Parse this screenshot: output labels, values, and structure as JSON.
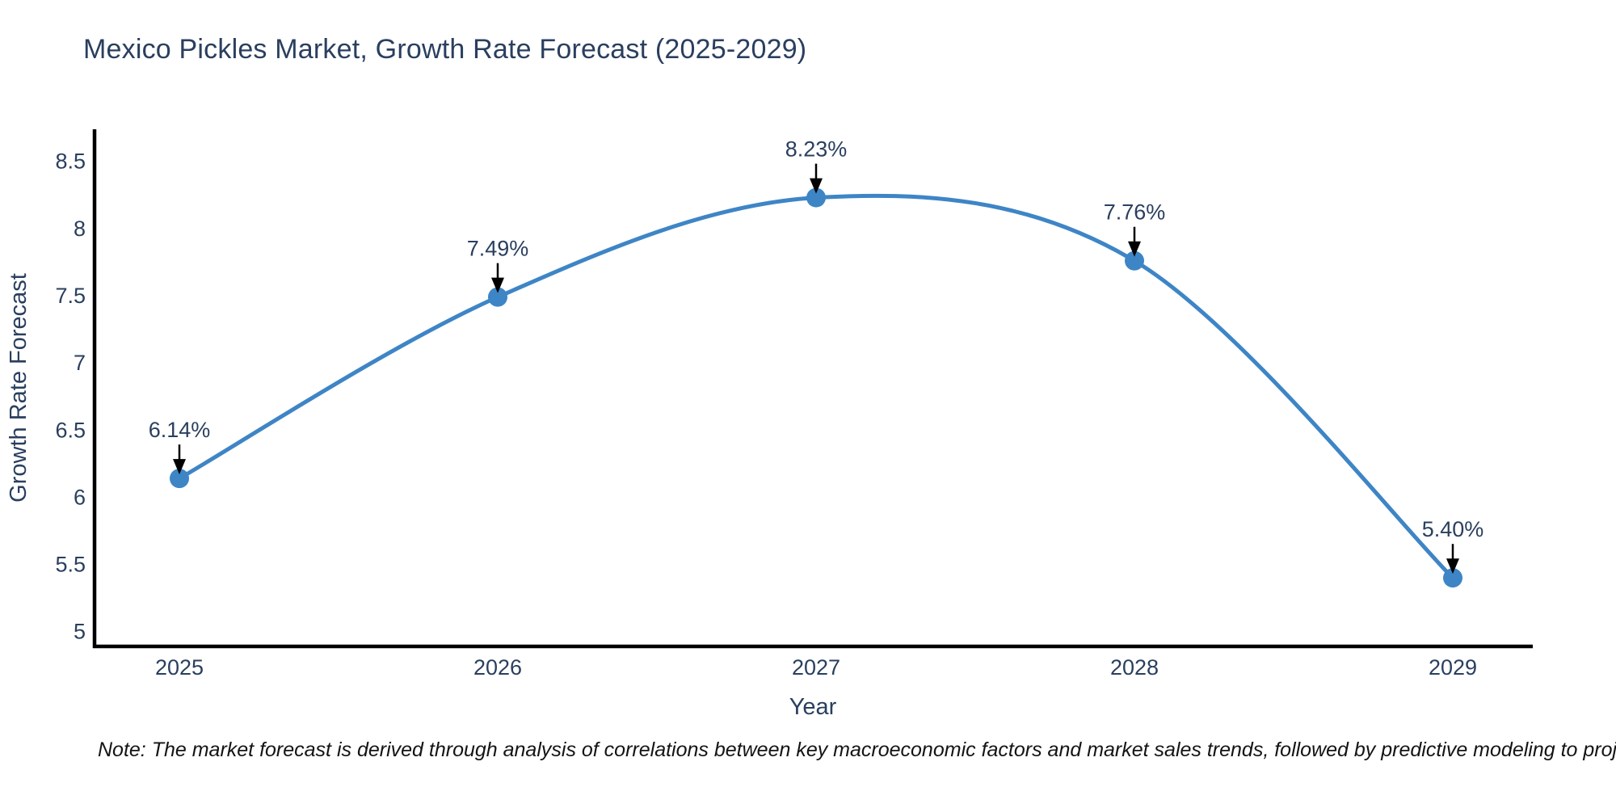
{
  "chart_data": {
    "type": "line",
    "title": "Mexico Pickles Market, Growth Rate Forecast (2025-2029)",
    "xlabel": "Year",
    "ylabel": "Growth Rate Forecast",
    "categories": [
      "2025",
      "2026",
      "2027",
      "2028",
      "2029"
    ],
    "series": [
      {
        "name": "Growth Rate Forecast",
        "values": [
          6.14,
          7.49,
          8.23,
          7.76,
          5.4
        ]
      }
    ],
    "point_labels": [
      "6.14%",
      "7.49%",
      "8.23%",
      "7.76%",
      "5.40%"
    ],
    "yticks": [
      "5",
      "5.5",
      "6",
      "6.5",
      "7",
      "7.5",
      "8",
      "8.5"
    ],
    "ytick_values": [
      5,
      5.5,
      6,
      6.5,
      7,
      7.5,
      8,
      8.5
    ],
    "ylim": [
      4.89,
      8.74
    ],
    "line_shape": "spline",
    "grid": false,
    "legend_position": "none",
    "colors": {
      "line": "#3e85c6",
      "marker": "#3e85c6",
      "annotation_arrow": "#000000",
      "axis_line": "#000000",
      "text": "#2a3f5f",
      "note_text": "#141414"
    }
  },
  "note": "Note: The market forecast is derived through analysis of correlations between key macroeconomic factors and market sales trends, followed by predictive modeling to project future sales"
}
